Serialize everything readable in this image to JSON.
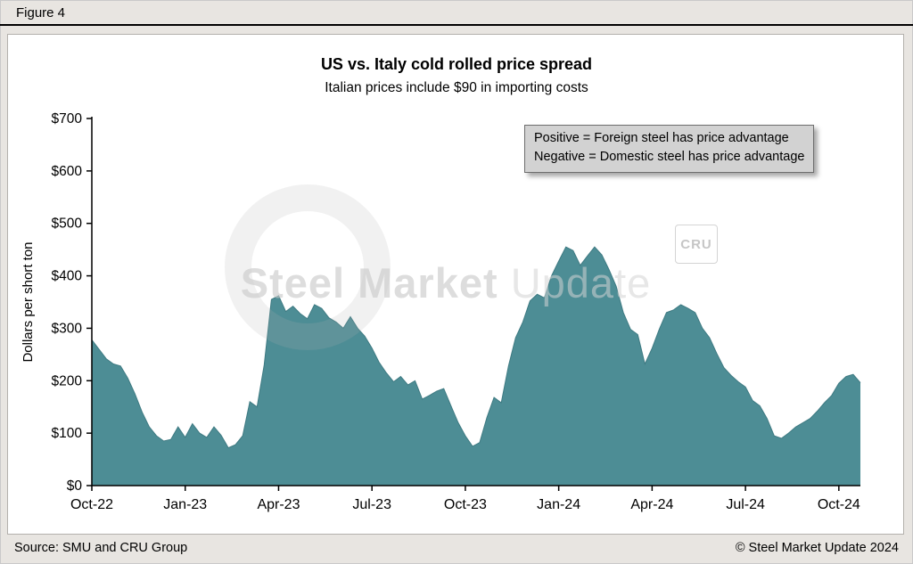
{
  "figure_label": "Figure 4",
  "title": "US vs. Italy cold rolled price spread",
  "subtitle": "Italian prices include $90 in importing costs",
  "annotation": {
    "line1": "Positive = Foreign steel has price advantage",
    "line2": "Negative = Domestic steel has price advantage"
  },
  "watermark": {
    "text_bold": "Steel Market",
    "text_light": "Update",
    "cru": "CRU"
  },
  "footer": {
    "source": "Source: SMU and CRU Group",
    "copyright": "© Steel Market Update 2024"
  },
  "chart_data": {
    "type": "area",
    "title": "US vs. Italy cold rolled price spread",
    "subtitle": "Italian prices include $90 in importing costs",
    "xlabel": "",
    "ylabel": "Dollars per short ton",
    "ylim": [
      0,
      700
    ],
    "y_tick_values": [
      0,
      100,
      200,
      300,
      400,
      500,
      600,
      700
    ],
    "y_ticks": [
      "$0",
      "$100",
      "$200",
      "$300",
      "$400",
      "$500",
      "$600",
      "$700"
    ],
    "x_tick_labels": [
      "Oct-22",
      "Jan-23",
      "Apr-23",
      "Jul-23",
      "Oct-23",
      "Jan-24",
      "Apr-24",
      "Jul-24",
      "Oct-24"
    ],
    "x_tick_weeks": [
      0,
      13,
      26,
      39,
      52,
      65,
      78,
      91,
      104
    ],
    "x_domain": [
      0,
      107
    ],
    "frequency": "weekly",
    "fill_color": "#4d8d95",
    "edge_color": "#3e7a82",
    "grid": false,
    "legend_position": "none",
    "values": [
      278,
      260,
      242,
      232,
      228,
      205,
      175,
      140,
      112,
      95,
      85,
      88,
      112,
      92,
      118,
      100,
      92,
      112,
      96,
      72,
      78,
      95,
      160,
      150,
      230,
      355,
      362,
      332,
      342,
      328,
      318,
      345,
      338,
      320,
      312,
      300,
      322,
      300,
      285,
      262,
      235,
      215,
      198,
      208,
      192,
      200,
      165,
      172,
      180,
      185,
      152,
      120,
      95,
      75,
      82,
      130,
      168,
      158,
      228,
      282,
      312,
      352,
      365,
      358,
      400,
      428,
      455,
      448,
      420,
      438,
      455,
      440,
      412,
      380,
      330,
      298,
      288,
      232,
      262,
      298,
      330,
      335,
      345,
      338,
      330,
      300,
      282,
      252,
      225,
      210,
      198,
      188,
      162,
      152,
      128,
      95,
      90,
      100,
      112,
      120,
      128,
      142,
      158,
      172,
      195,
      208,
      212,
      196
    ]
  }
}
